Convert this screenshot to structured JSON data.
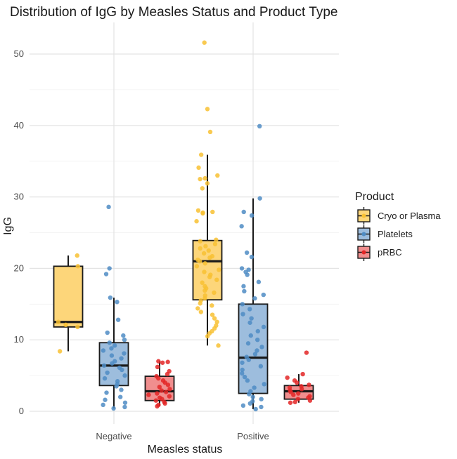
{
  "chart_data": {
    "type": "boxplot",
    "title": "Distribution of IgG by Measles Status and Product Type",
    "xlabel": "Measles status",
    "ylabel": "IgG",
    "categories": [
      "Negative",
      "Positive"
    ],
    "ylim": [
      -1,
      54
    ],
    "yticks": [
      0,
      10,
      20,
      30,
      40,
      50
    ],
    "grid": true,
    "legend": {
      "title": "Product",
      "position": "right"
    },
    "series": [
      {
        "name": "Cryo or Plasma",
        "fill": "#fdd67a",
        "point_color": "#f8c132",
        "boxes": [
          {
            "category": "Negative",
            "min": 8.4,
            "q1": 11.8,
            "median": 12.5,
            "q3": 20.3,
            "max": 21.8,
            "points": [
              21.8,
              20.3,
              12.5,
              12.1,
              11.8,
              8.4
            ]
          },
          {
            "category": "Positive",
            "min": 9.2,
            "q1": 15.6,
            "median": 21.0,
            "q3": 23.9,
            "max": 35.9,
            "points": [
              51.6,
              42.3,
              39.1,
              35.9,
              34.1,
              33.0,
              32.6,
              32.5,
              31.9,
              31.2,
              28.1,
              27.9,
              27.8,
              27.7,
              26.6,
              24.0,
              23.8,
              23.4,
              23.1,
              22.8,
              22.5,
              22.1,
              21.7,
              21.5,
              21.2,
              21.0,
              20.7,
              20.3,
              19.8,
              19.5,
              19.1,
              18.8,
              18.4,
              18.0,
              17.5,
              17.2,
              16.9,
              16.6,
              16.2,
              15.8,
              15.5,
              15.1,
              14.8,
              14.4,
              13.9,
              13.5,
              13.0,
              12.5,
              12.0,
              11.6,
              11.2,
              10.9,
              10.5,
              9.2
            ]
          }
        ]
      },
      {
        "name": "Platelets",
        "fill": "#9dbddd",
        "point_color": "#4f8cc4",
        "boxes": [
          {
            "category": "Negative",
            "min": 0.4,
            "q1": 3.6,
            "median": 6.4,
            "q3": 9.6,
            "max": 15.9,
            "points": [
              28.6,
              20.0,
              19.2,
              15.9,
              15.3,
              12.8,
              11.0,
              10.6,
              10.0,
              9.6,
              9.2,
              8.8,
              8.5,
              8.1,
              7.8,
              7.4,
              7.0,
              6.7,
              6.4,
              6.1,
              5.8,
              5.4,
              5.0,
              4.6,
              4.2,
              3.8,
              3.5,
              3.0,
              2.6,
              2.0,
              1.6,
              1.2,
              0.9,
              0.6,
              0.4
            ]
          },
          {
            "category": "Positive",
            "min": 0.3,
            "q1": 2.5,
            "median": 7.5,
            "q3": 15.0,
            "max": 29.8,
            "points": [
              39.9,
              29.8,
              27.9,
              27.4,
              25.9,
              22.2,
              21.6,
              20.0,
              19.8,
              19.5,
              19.1,
              18.1,
              17.5,
              16.8,
              16.3,
              15.8,
              15.0,
              14.3,
              13.6,
              13.0,
              12.4,
              11.8,
              11.2,
              10.6,
              10.0,
              9.5,
              9.0,
              8.5,
              8.0,
              7.6,
              7.2,
              6.8,
              6.3,
              5.8,
              5.3,
              4.8,
              4.3,
              3.8,
              3.3,
              2.8,
              2.4,
              2.0,
              1.7,
              1.4,
              1.1,
              0.8,
              0.6,
              0.3
            ]
          }
        ]
      },
      {
        "name": "pRBC",
        "fill": "#f08e8e",
        "point_color": "#e32626",
        "boxes": [
          {
            "category": "Negative",
            "min": 0.7,
            "q1": 1.5,
            "median": 2.8,
            "q3": 4.9,
            "max": 7.0,
            "points": [
              7.0,
              6.9,
              6.8,
              6.2,
              5.6,
              5.2,
              4.9,
              4.6,
              4.3,
              4.0,
              3.7,
              3.4,
              3.1,
              2.9,
              2.7,
              2.5,
              2.3,
              2.1,
              1.9,
              1.7,
              1.5,
              1.3,
              1.1,
              0.9,
              0.7
            ]
          },
          {
            "category": "Positive",
            "min": 1.2,
            "q1": 1.7,
            "median": 2.8,
            "q3": 3.6,
            "max": 5.2,
            "points": [
              8.2,
              5.2,
              4.7,
              4.3,
              4.0,
              3.7,
              3.5,
              3.3,
              3.1,
              2.9,
              2.7,
              2.5,
              2.3,
              2.1,
              1.9,
              1.7,
              1.5,
              1.3,
              1.2
            ]
          }
        ]
      }
    ]
  }
}
